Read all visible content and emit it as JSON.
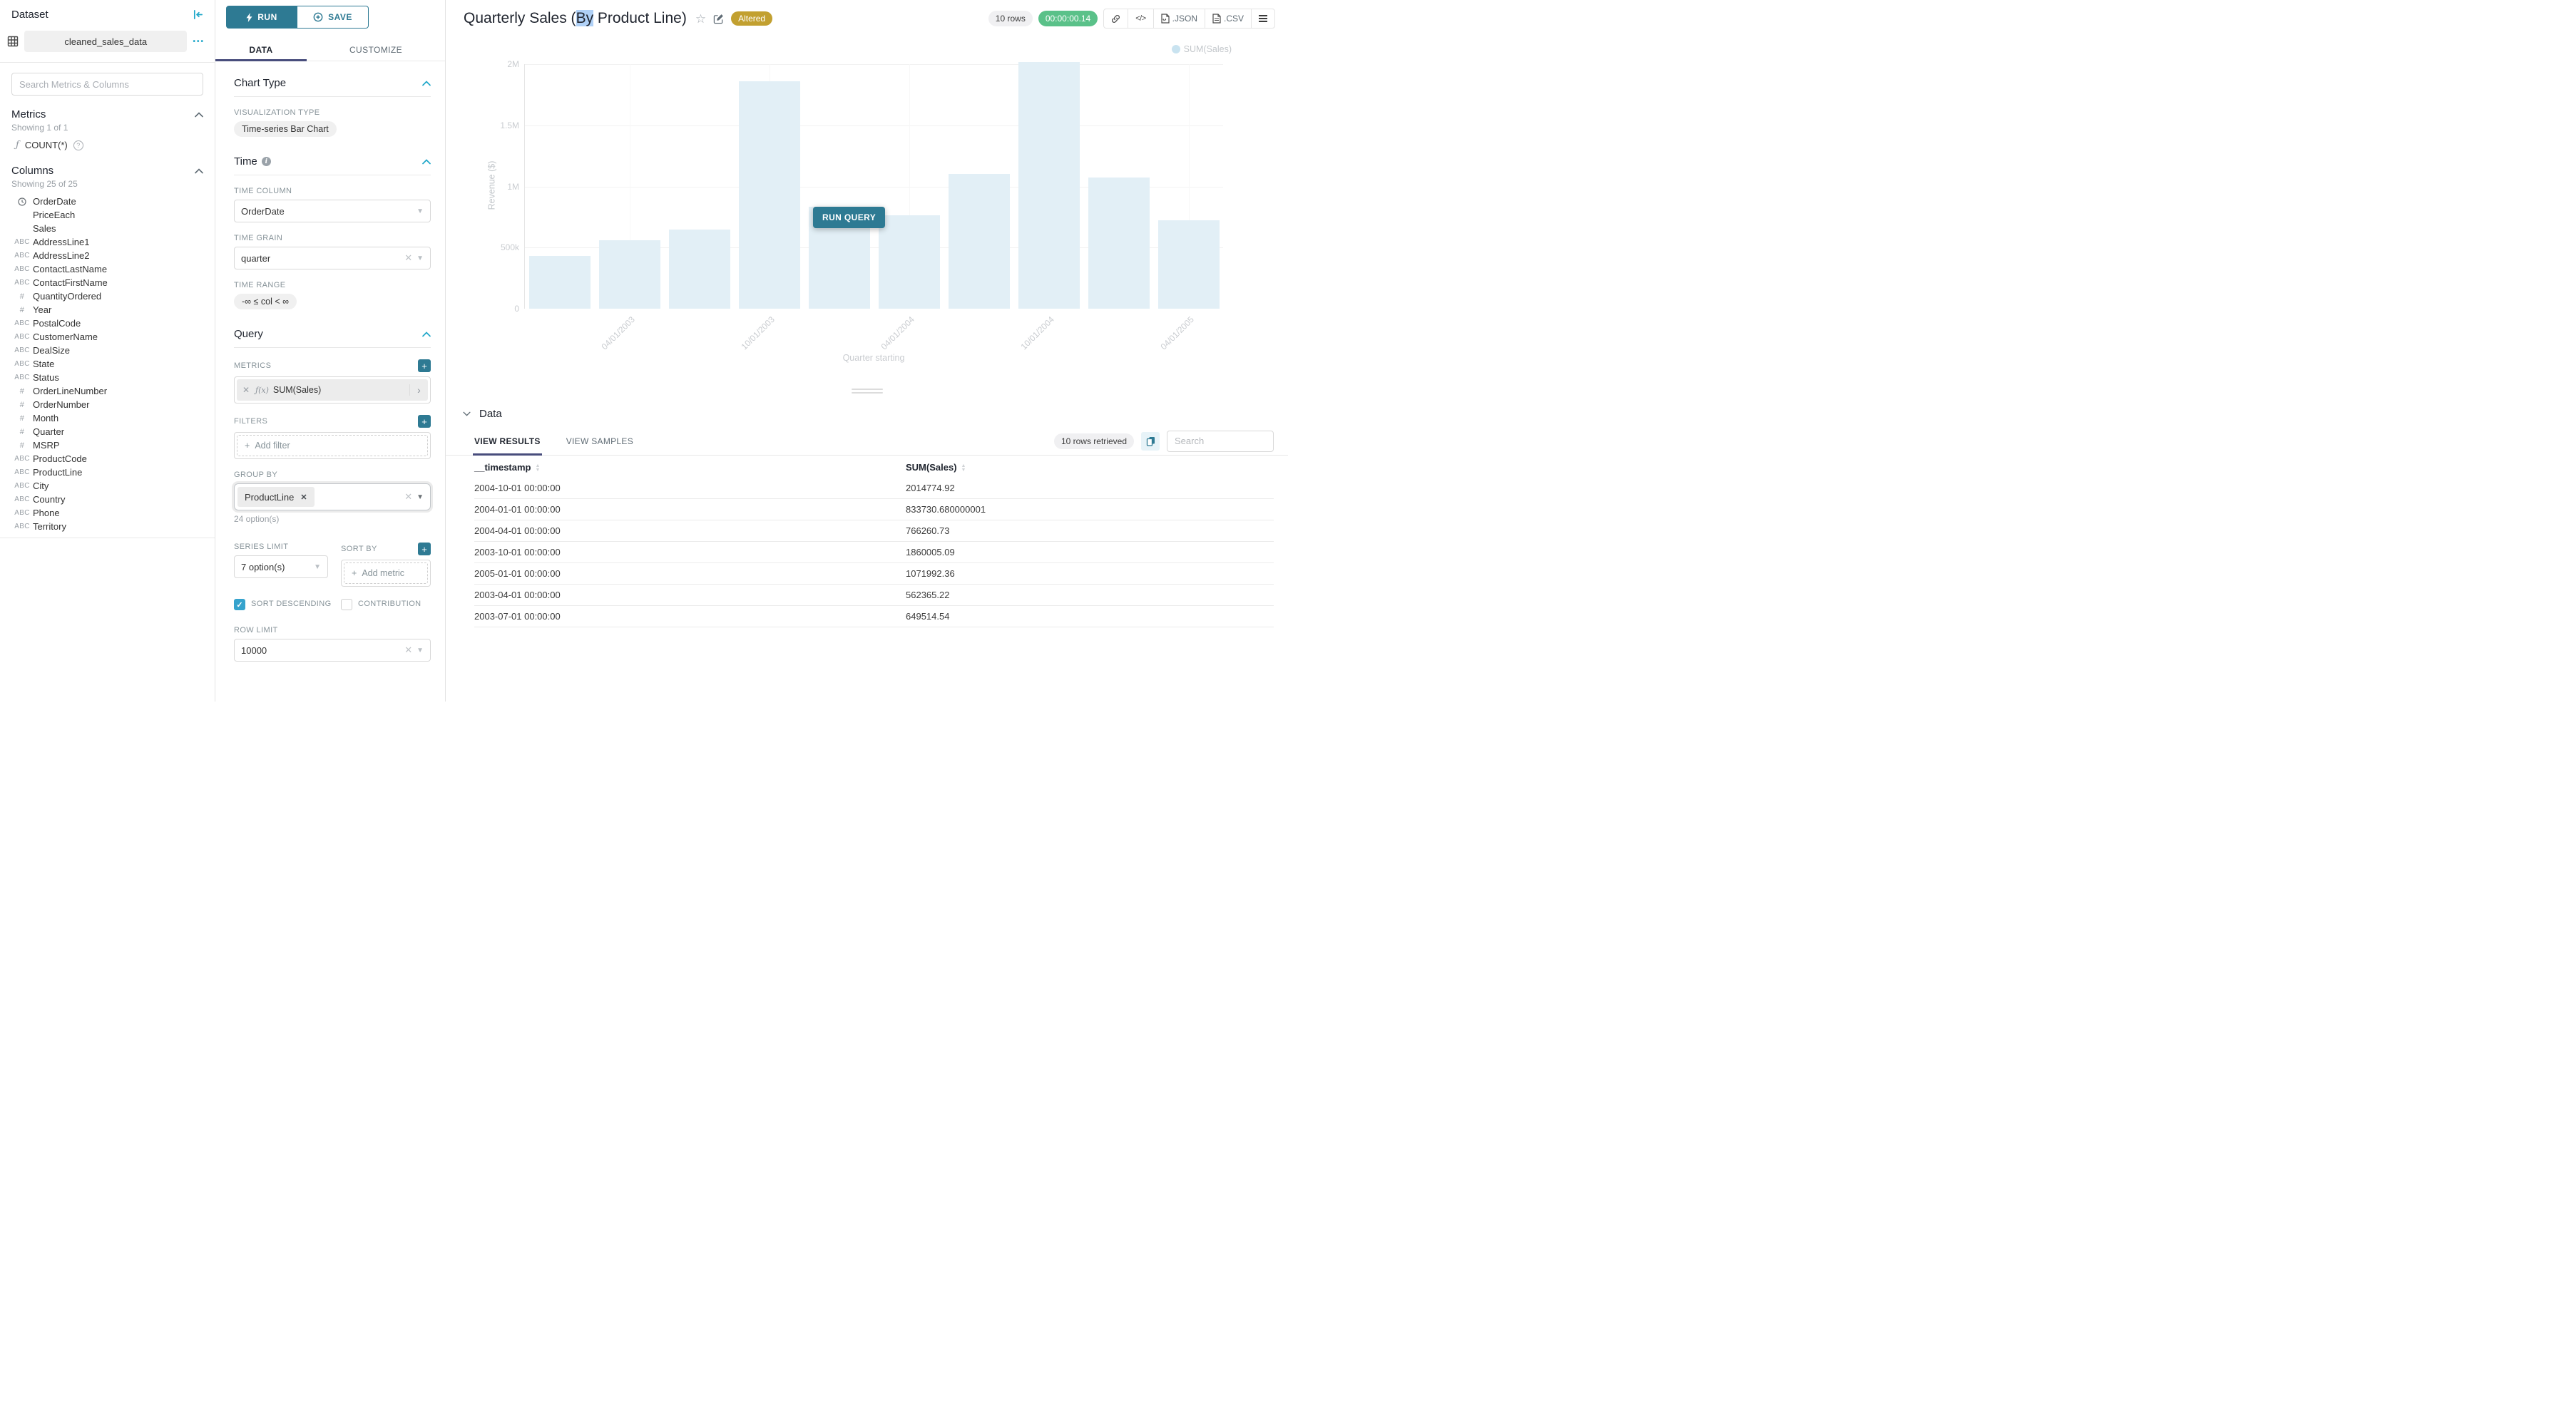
{
  "colors": {
    "accent_teal": "#20a7c9",
    "button_teal": "#2e7a93",
    "tab_underline": "#484d7c",
    "badge_gold": "#c2a030",
    "badge_green": "#5ac189",
    "bar_fill": "#e2eff6",
    "checkbox_checked": "#36a3cd"
  },
  "sidebar": {
    "title": "Dataset",
    "dataset_name": "cleaned_sales_data",
    "search_placeholder": "Search Metrics & Columns",
    "metrics": {
      "title": "Metrics",
      "showing": "Showing 1 of 1",
      "items": [
        {
          "icon": "function",
          "label": "COUNT(*)"
        }
      ]
    },
    "columns": {
      "title": "Columns",
      "showing": "Showing 25 of 25",
      "items": [
        {
          "icon": "clock",
          "label": "OrderDate"
        },
        {
          "icon": "none",
          "label": "PriceEach"
        },
        {
          "icon": "none",
          "label": "Sales"
        },
        {
          "icon": "abc",
          "label": "AddressLine1"
        },
        {
          "icon": "abc",
          "label": "AddressLine2"
        },
        {
          "icon": "abc",
          "label": "ContactLastName"
        },
        {
          "icon": "abc",
          "label": "ContactFirstName"
        },
        {
          "icon": "num",
          "label": "QuantityOrdered"
        },
        {
          "icon": "num",
          "label": "Year"
        },
        {
          "icon": "abc",
          "label": "PostalCode"
        },
        {
          "icon": "abc",
          "label": "CustomerName"
        },
        {
          "icon": "abc",
          "label": "DealSize"
        },
        {
          "icon": "abc",
          "label": "State"
        },
        {
          "icon": "abc",
          "label": "Status"
        },
        {
          "icon": "num",
          "label": "OrderLineNumber"
        },
        {
          "icon": "num",
          "label": "OrderNumber"
        },
        {
          "icon": "num",
          "label": "Month"
        },
        {
          "icon": "num",
          "label": "Quarter"
        },
        {
          "icon": "num",
          "label": "MSRP"
        },
        {
          "icon": "abc",
          "label": "ProductCode"
        },
        {
          "icon": "abc",
          "label": "ProductLine"
        },
        {
          "icon": "abc",
          "label": "City"
        },
        {
          "icon": "abc",
          "label": "Country"
        },
        {
          "icon": "abc",
          "label": "Phone"
        },
        {
          "icon": "abc",
          "label": "Territory"
        }
      ]
    }
  },
  "controls": {
    "run_label": "RUN",
    "save_label": "SAVE",
    "tab_data": "DATA",
    "tab_customize": "CUSTOMIZE",
    "chart_type": {
      "section": "Chart Type",
      "viz_label": "VISUALIZATION TYPE",
      "viz_value": "Time-series Bar Chart"
    },
    "time": {
      "section": "Time",
      "column_label": "TIME COLUMN",
      "column_value": "OrderDate",
      "grain_label": "TIME GRAIN",
      "grain_value": "quarter",
      "range_label": "TIME RANGE",
      "range_value": "-∞ ≤ col < ∞"
    },
    "query": {
      "section": "Query",
      "metrics_label": "METRICS",
      "metric_fx": "ƒ(x)",
      "metric_chip": "SUM(Sales)",
      "filters_label": "FILTERS",
      "add_filter": "Add filter",
      "groupby_label": "GROUP BY",
      "groupby_chip": "ProductLine",
      "groupby_hint": "24 option(s)",
      "series_limit_label": "SERIES LIMIT",
      "series_limit_value": "7 option(s)",
      "sort_by_label": "SORT BY",
      "add_metric": "Add metric",
      "sort_descending_label": "SORT DESCENDING",
      "contribution_label": "CONTRIBUTION",
      "row_limit_label": "ROW LIMIT",
      "row_limit_value": "10000"
    }
  },
  "header": {
    "title_pre": "Quarterly Sales (",
    "title_selected": "By",
    "title_post": " Product Line)",
    "altered_badge": "Altered",
    "rows_badge": "10 rows",
    "timer_badge": "00:00:00.14",
    "json_label": ".JSON",
    "csv_label": ".CSV",
    "run_query_label": "RUN QUERY"
  },
  "chart_data": {
    "type": "bar",
    "title": "Quarterly Sales (By Product Line)",
    "xlabel": "Quarter starting",
    "ylabel": "Revenue ($)",
    "ylim": [
      0,
      2000000
    ],
    "y_ticks": [
      "0",
      "500k",
      "1M",
      "1.5M",
      "2M"
    ],
    "grid": true,
    "legend_position": "top-right",
    "categories": [
      "2003-01-01",
      "2003-04-01",
      "2003-07-01",
      "2003-10-01",
      "2004-01-01",
      "2004-04-01",
      "2004-07-01",
      "2004-10-01",
      "2005-01-01",
      "2005-04-01"
    ],
    "x_tick_labels": [
      "04/01/2003",
      "10/01/2003",
      "04/01/2004",
      "10/01/2004",
      "04/01/2005"
    ],
    "x_tick_every": 2,
    "series": [
      {
        "name": "SUM(Sales)",
        "values": [
          430000,
          562365.22,
          649514.54,
          1860005.09,
          833730.68,
          766260.73,
          1100000,
          2014774.92,
          1071992.36,
          725000
        ]
      }
    ]
  },
  "data_panel": {
    "section_title": "Data",
    "tab_results": "VIEW RESULTS",
    "tab_samples": "VIEW SAMPLES",
    "rows_retrieved": "10 rows retrieved",
    "search_placeholder": "Search",
    "table": {
      "columns": [
        "__timestamp",
        "SUM(Sales)"
      ],
      "rows": [
        [
          "2004-10-01 00:00:00",
          "2014774.92"
        ],
        [
          "2004-01-01 00:00:00",
          "833730.680000001"
        ],
        [
          "2004-04-01 00:00:00",
          "766260.73"
        ],
        [
          "2003-10-01 00:00:00",
          "1860005.09"
        ],
        [
          "2005-01-01 00:00:00",
          "1071992.36"
        ],
        [
          "2003-04-01 00:00:00",
          "562365.22"
        ],
        [
          "2003-07-01 00:00:00",
          "649514.54"
        ]
      ]
    }
  }
}
